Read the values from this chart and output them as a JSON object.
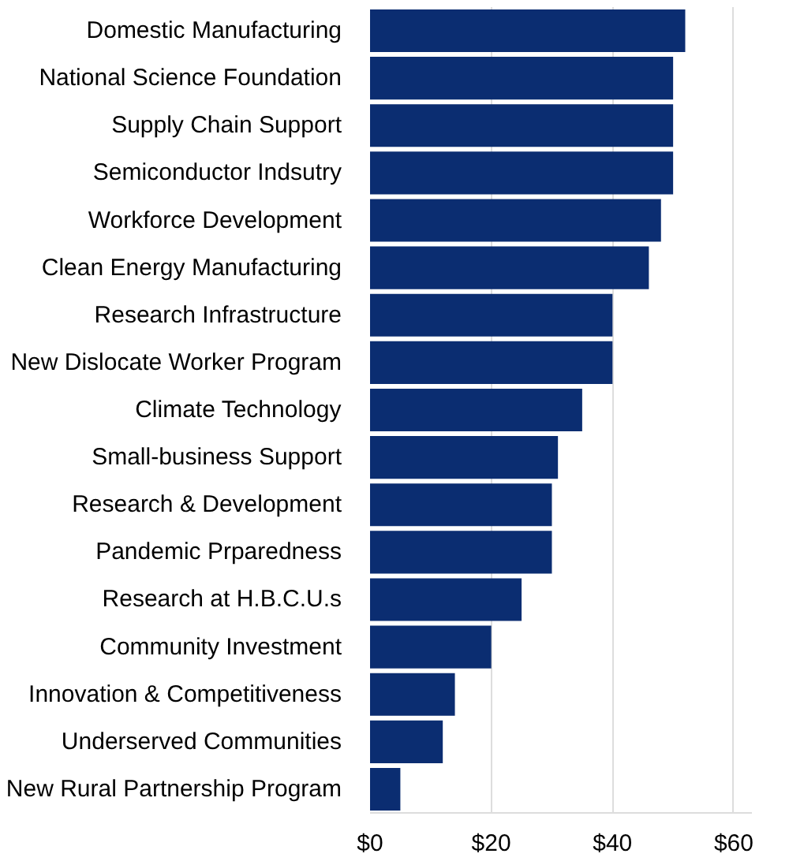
{
  "chart_data": {
    "type": "bar",
    "orientation": "horizontal",
    "categories": [
      "Domestic Manufacturing",
      "National Science Foundation",
      "Supply Chain Support",
      "Semiconductor Indsutry",
      "Workforce Development",
      "Clean Energy Manufacturing",
      "Research Infrastructure",
      "New Dislocate Worker Program",
      "Climate Technology",
      "Small-business Support",
      "Research & Development",
      "Pandemic Prparedness",
      "Research at H.B.C.U.s",
      "Community Investment",
      "Innovation & Competitiveness",
      "Underserved Communities",
      "New Rural Partnership Program"
    ],
    "values": [
      52,
      50,
      50,
      50,
      48,
      46,
      40,
      40,
      35,
      31,
      30,
      30,
      25,
      20,
      14,
      12,
      5
    ],
    "color": "#0b2d71",
    "xlim": [
      0,
      63
    ],
    "xticks": [
      {
        "value": 0,
        "label": "$0"
      },
      {
        "value": 20,
        "label": "$20"
      },
      {
        "value": 40,
        "label": "$40"
      },
      {
        "value": 60,
        "label": "$60"
      }
    ],
    "grid": "x"
  }
}
